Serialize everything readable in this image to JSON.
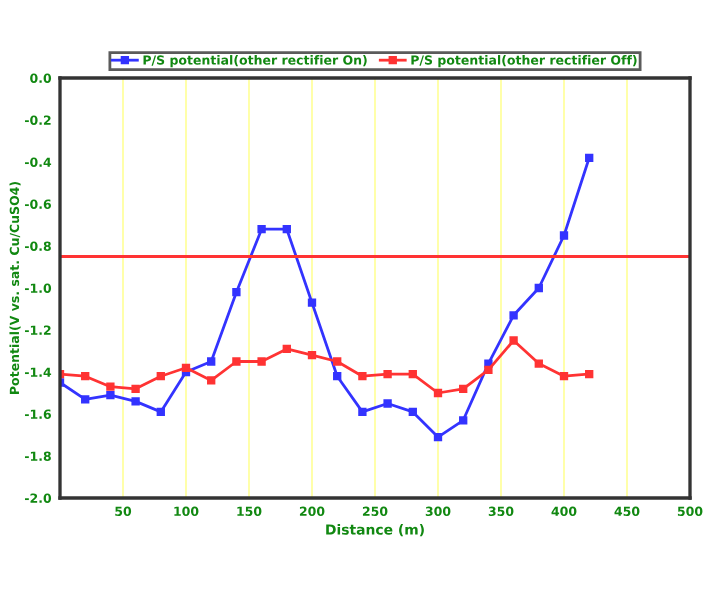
{
  "chart_data": {
    "type": "line",
    "xlabel": "Distance (m)",
    "ylabel": "Potential(V vs. sat. Cu/CuSO4)",
    "x": [
      0,
      20,
      40,
      60,
      80,
      100,
      120,
      140,
      160,
      180,
      200,
      220,
      240,
      260,
      280,
      300,
      320,
      340,
      360,
      380,
      400,
      420
    ],
    "series": [
      {
        "name": "P/S potential(other rectifier On)",
        "color": "#3333ff",
        "values": [
          -1.45,
          -1.53,
          -1.51,
          -1.54,
          -1.59,
          -1.4,
          -1.35,
          -1.02,
          -0.72,
          -0.72,
          -1.07,
          -1.42,
          -1.59,
          -1.55,
          -1.59,
          -1.71,
          -1.63,
          -1.36,
          -1.13,
          -1.0,
          -0.75,
          -0.38
        ]
      },
      {
        "name": "P/S potential(other rectifier Off)",
        "color": "#ff3333",
        "values": [
          -1.41,
          -1.42,
          -1.47,
          -1.48,
          -1.42,
          -1.38,
          -1.44,
          -1.35,
          -1.35,
          -1.29,
          -1.32,
          -1.35,
          -1.42,
          -1.41,
          -1.41,
          -1.5,
          -1.48,
          -1.39,
          -1.25,
          -1.36,
          -1.42,
          -1.41
        ]
      }
    ],
    "ref_lines": [
      {
        "axis": "y",
        "value": -0.85,
        "color": "#ff3333"
      }
    ],
    "xlim": [
      0,
      500
    ],
    "xticks": [
      50,
      100,
      150,
      200,
      250,
      300,
      350,
      400,
      450,
      500
    ],
    "ylim": [
      -2.0,
      0.0
    ],
    "yticks": [
      {
        "value": 0,
        "label": "0.0"
      },
      {
        "value": -0.2,
        "label": "-0.2"
      },
      {
        "value": -0.4,
        "label": "-0.4"
      },
      {
        "value": -0.6,
        "label": "-0.6"
      },
      {
        "value": -0.8,
        "label": "-0.8"
      },
      {
        "value": -1.0,
        "label": "-1.0"
      },
      {
        "value": -1.2,
        "label": "-1.2"
      },
      {
        "value": -1.4,
        "label": "-1.4"
      },
      {
        "value": -1.6,
        "label": "-1.6"
      },
      {
        "value": -1.8,
        "label": "-1.8"
      },
      {
        "value": -2.0,
        "label": "-2.0"
      }
    ],
    "grid": "x",
    "legend": "top",
    "marker": "square",
    "line_style": "solid"
  }
}
